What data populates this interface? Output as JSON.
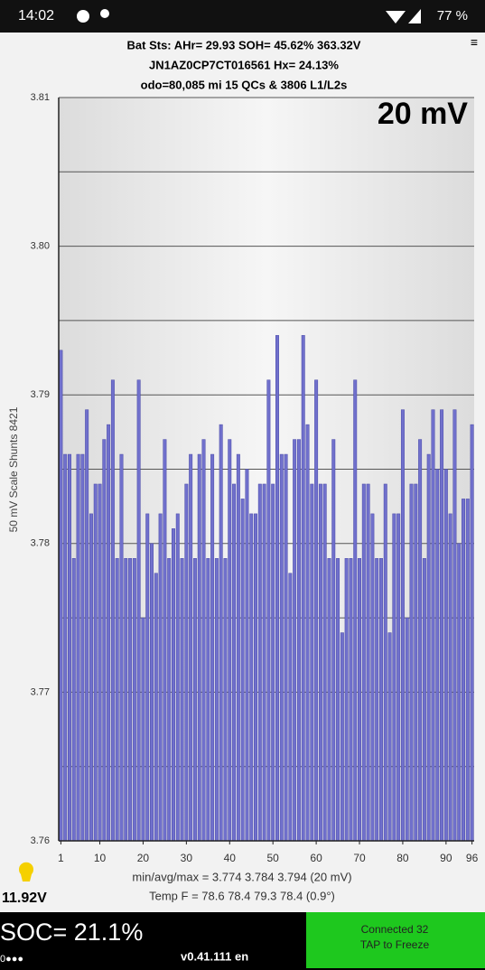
{
  "status_bar": {
    "time": "14:02",
    "battery": "77 %"
  },
  "header": {
    "lines": [
      "Bat Sts:  AHr= 29.93  SOH= 45.62%  363.32V",
      "JN1AZ0CP7CT016561  Hx= 24.13%",
      "odo=80,085 mi 15 QCs & 3806 L1/L2s"
    ]
  },
  "chart_data": {
    "type": "bar",
    "annotation": "20 mV",
    "y_label": "50 mV Scale   Shunts 8421",
    "x": [
      1,
      2,
      3,
      4,
      5,
      6,
      7,
      8,
      9,
      10,
      11,
      12,
      13,
      14,
      15,
      16,
      17,
      18,
      19,
      20,
      21,
      22,
      23,
      24,
      25,
      26,
      27,
      28,
      29,
      30,
      31,
      32,
      33,
      34,
      35,
      36,
      37,
      38,
      39,
      40,
      41,
      42,
      43,
      44,
      45,
      46,
      47,
      48,
      49,
      50,
      51,
      52,
      53,
      54,
      55,
      56,
      57,
      58,
      59,
      60,
      61,
      62,
      63,
      64,
      65,
      66,
      67,
      68,
      69,
      70,
      71,
      72,
      73,
      74,
      75,
      76,
      77,
      78,
      79,
      80,
      81,
      82,
      83,
      84,
      85,
      86,
      87,
      88,
      89,
      90,
      91,
      92,
      93,
      94,
      95,
      96
    ],
    "values": [
      3.793,
      3.786,
      3.786,
      3.779,
      3.786,
      3.786,
      3.789,
      3.782,
      3.784,
      3.784,
      3.787,
      3.788,
      3.791,
      3.779,
      3.786,
      3.779,
      3.779,
      3.779,
      3.791,
      3.775,
      3.782,
      3.78,
      3.778,
      3.782,
      3.787,
      3.779,
      3.781,
      3.782,
      3.779,
      3.784,
      3.786,
      3.779,
      3.786,
      3.787,
      3.779,
      3.786,
      3.779,
      3.788,
      3.779,
      3.787,
      3.784,
      3.786,
      3.783,
      3.785,
      3.782,
      3.782,
      3.784,
      3.784,
      3.791,
      3.784,
      3.794,
      3.786,
      3.786,
      3.778,
      3.787,
      3.787,
      3.794,
      3.788,
      3.784,
      3.791,
      3.784,
      3.784,
      3.779,
      3.787,
      3.779,
      3.774,
      3.779,
      3.779,
      3.791,
      3.779,
      3.784,
      3.784,
      3.782,
      3.779,
      3.779,
      3.784,
      3.774,
      3.782,
      3.782,
      3.789,
      3.775,
      3.784,
      3.784,
      3.787,
      3.779,
      3.786,
      3.789,
      3.785,
      3.789,
      3.785,
      3.782,
      3.789,
      3.78,
      3.783,
      3.783,
      3.788
    ],
    "color": "#7070cc",
    "xlim": [
      0.5,
      96.5
    ],
    "xticks": [
      1,
      10,
      20,
      30,
      40,
      50,
      60,
      70,
      80,
      90,
      96
    ],
    "ylim": [
      3.76,
      3.81
    ],
    "yticks": [
      3.76,
      3.77,
      3.78,
      3.79,
      {
        "value": 3.8,
        "label": "3.80"
      },
      3.81
    ],
    "grid_lines": [
      3.765,
      3.775,
      3.785,
      3.795,
      3.805
    ],
    "grid": true
  },
  "footer": {
    "lines": [
      "min/avg/max = 3.774 3.784 3.794  (20 mV)",
      "Temp F = 78.6 78.4 79.3 78.4  (0.9°)"
    ],
    "aux_voltage": "11.92V",
    "soc": "SOC= 21.1%",
    "dots": "0●●●",
    "version": "v0.41.111 en",
    "button": [
      "Connected 32",
      "TAP to Freeze"
    ]
  }
}
